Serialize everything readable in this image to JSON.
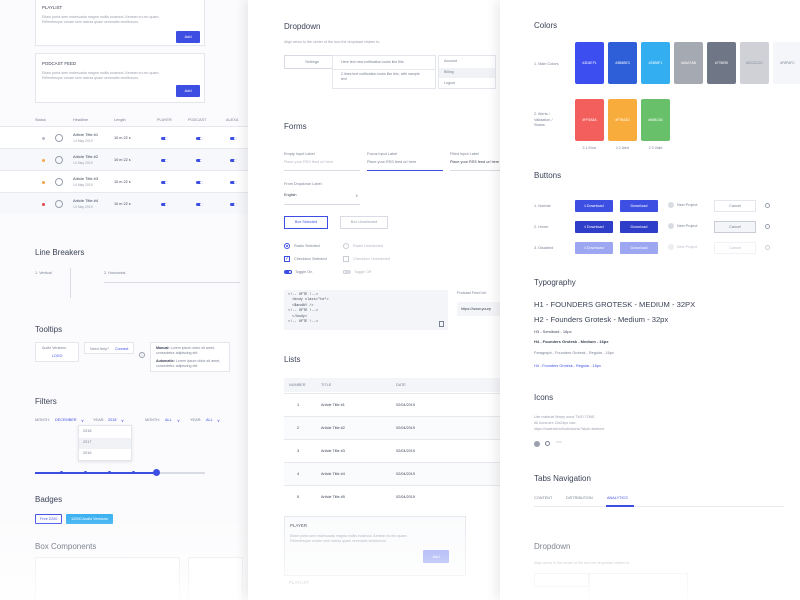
{
  "left": {
    "playlist": {
      "title": "PLAYLIST",
      "body": "Etiam porta sem malesuada magna mollis euismod. Aenean eu leo quam. Pellentesque ornare sem lacinia quam venenatis vestibulum.",
      "button": "Add"
    },
    "podcast": {
      "title": "PODCAST FEED",
      "body": "Etiam porta sem malesuada magna mollis euismod. Aenean eu leo quam. Pellentesque ornare sem lacinia quam venenatis vestibulum.",
      "button": "Add"
    },
    "table": {
      "headers": [
        "Status",
        "Headline",
        "Length",
        "PLAYER",
        "PODCAST",
        "ALEXA"
      ],
      "rows": [
        {
          "title": "Article Title #1",
          "date": "14 May 2019",
          "length": "10 m 22 s",
          "dot": "#b8bcc6"
        },
        {
          "title": "Article Title #2",
          "date": "14 May 2019",
          "length": "10 m 22 s",
          "dot": "#f4a64a"
        },
        {
          "title": "Article Title #3",
          "date": "14 May 2019",
          "length": "10 m 22 s",
          "dot": "#f4a64a"
        },
        {
          "title": "Article Title #4",
          "date": "14 May 2019",
          "length": "10 m 22 s",
          "dot": "#e2454a"
        }
      ]
    },
    "line_breakers": {
      "title": "Line Breakers",
      "vertical": "1. Vertical",
      "horizontal": "2. Horizontal"
    },
    "tooltips": {
      "title": "Tooltips",
      "audio": "Audio Versions",
      "logo": "LOGO",
      "need_help": "Need Help?",
      "connect": "Connect",
      "manual_label": "Manual:",
      "manual_text": "Lorem ipsum dolor sit amet, consectetur adipiscing elit.",
      "auto_label": "Automatic:",
      "auto_text": "Lorem ipsum dolor sit amet, consectetur adipiscing elit."
    },
    "filters": {
      "title": "Filters",
      "month_label": "MONTH:",
      "month_value": "DECEMBER",
      "year_label": "YEAR:",
      "year_value": "2018",
      "month2_label": "MONTH:",
      "month2_value": "ALL",
      "year2_label": "YEAR:",
      "year2_value": "ALL",
      "years": [
        "2018",
        "2017",
        "2016"
      ],
      "slider_value": 0.71
    },
    "badges": {
      "title": "Badges",
      "badge1": "Free 2200",
      "badge2": "12000 Audio Versions"
    },
    "box_components": {
      "title": "Box Components"
    }
  },
  "middle": {
    "dropdown": {
      "title": "Dropdown",
      "desc": "Align arrow to the center of the icon the dropdown relates to.",
      "settings": "Settings",
      "notif1": "Here text new notification looks like this",
      "notif2": "2 lines text notification looks like this, with sample text",
      "menu": [
        "Account",
        "Billing",
        "Logout"
      ]
    },
    "forms": {
      "title": "Forms",
      "empty_label": "Empty Input Label",
      "empty_placeholder": "Place your RSS feed url here",
      "focus_label": "Focus Input Label",
      "focus_placeholder": "Place your RSS feed url here",
      "filled_label": "Filled Input Label",
      "filled_value": "Place your RSS feed url here",
      "dropdown_label": "From Dropdown Label",
      "dropdown_value": "English",
      "box_selected": "Box Selected",
      "box_unselected": "Box Unselected",
      "radio_selected": "Radio Selected",
      "radio_unselected": "Radio Unselected",
      "check_selected": "Checkbox Selected",
      "check_unselected": "Checkbox Unselected",
      "toggle_on": "Toggle On",
      "toggle_off": "Toggle Off",
      "code": [
        "<!-- UFTE !-->",
        "<body class=\"te\">",
        "<$andAY />",
        "<!-- UFTE !-->",
        "</body>",
        "<!-- UFTE !-->"
      ],
      "podcast_label": "Podcast Feed Url",
      "podcast_value": "https://www.yourp"
    },
    "lists": {
      "title": "Lists",
      "headers": [
        "NUMBER",
        "TITLE",
        "DATE"
      ],
      "rows": [
        {
          "n": "1",
          "title": "Article Title #1",
          "date": "02/04/2019"
        },
        {
          "n": "2",
          "title": "Article Title #2",
          "date": "02/04/2019"
        },
        {
          "n": "3",
          "title": "Article Title #3",
          "date": "02/04/2019"
        },
        {
          "n": "4",
          "title": "Article Title #4",
          "date": "02/04/2019"
        },
        {
          "n": "5",
          "title": "Article Title #5",
          "date": "02/04/2019"
        }
      ]
    },
    "player": {
      "title": "PLAYER",
      "body": "Etiam porta sem malesuada magna mollis euismod. Aenean eu leo quam. Pellentesque ornare sem lacinia quam venenatis vestibulum.",
      "button": "Add",
      "next": "PLAYLIST"
    }
  },
  "right": {
    "colors": {
      "title": "Colors",
      "main_label": "1. Main Colors",
      "alert_label": "2. Alerts / Validation / Status",
      "main": [
        {
          "hex": "#3D4EF1",
          "color": "#3d4ef1"
        },
        {
          "hex": "#3B6BE3",
          "color": "#2f5fd8"
        },
        {
          "hex": "#33B5F1",
          "color": "#33aef0"
        },
        {
          "hex": "#A5A7AB",
          "color": "#a5a9b2"
        },
        {
          "hex": "#778090",
          "color": "#6f7787"
        },
        {
          "hex": "#CCCCCC",
          "color": "#cfd1d6"
        },
        {
          "hex": "#F8FAFC",
          "color": "#f4f6f9"
        }
      ],
      "alerts": [
        {
          "hex": "#FF5A5A",
          "color": "#f25f5c",
          "name": "2.1 Error"
        },
        {
          "hex": "#F7B43D",
          "color": "#f7ac3c",
          "name": "2.2 Alert"
        },
        {
          "hex": "#66BC63",
          "color": "#69c06a",
          "name": "2.3 Valid"
        }
      ]
    },
    "buttons": {
      "title": "Buttons",
      "rows": [
        "1. Normal",
        "2. Hover",
        "3. Disabled"
      ],
      "download": "Download",
      "new_project": "New Project",
      "cancel": "Cancel"
    },
    "typography": {
      "title": "Typography",
      "h1": "H1 - FOUNDERS GROTESK - MEDIUM - 32PX",
      "h2": "H2 - Founders Grotesk - Medium - 32px",
      "h3": "H3 - Semibold - 16px",
      "h4": "H4 - Founders Grotesk - Medium - 16px",
      "paragraph": "Paragraph - Founders Grotesk - Regular - 16px",
      "link": "H4 - Founders Grotesk - Regular - 16px"
    },
    "icons": {
      "title": "Icons",
      "desc1": "Use material library icons TWO TONE.",
      "desc2": "All icons are 24x24px size.",
      "desc3": "https://material.io/tools/icons/?style=twotone"
    },
    "tabs": {
      "title": "Tabs Navigation",
      "items": [
        "CONTENT",
        "DISTRIBUTION",
        "ANALYTICS"
      ]
    },
    "dropdown_repeat": {
      "title": "Dropdown",
      "desc": "Align arrow to the center of the icon the dropdown relates to."
    }
  },
  "accent": "#3d4fe2"
}
